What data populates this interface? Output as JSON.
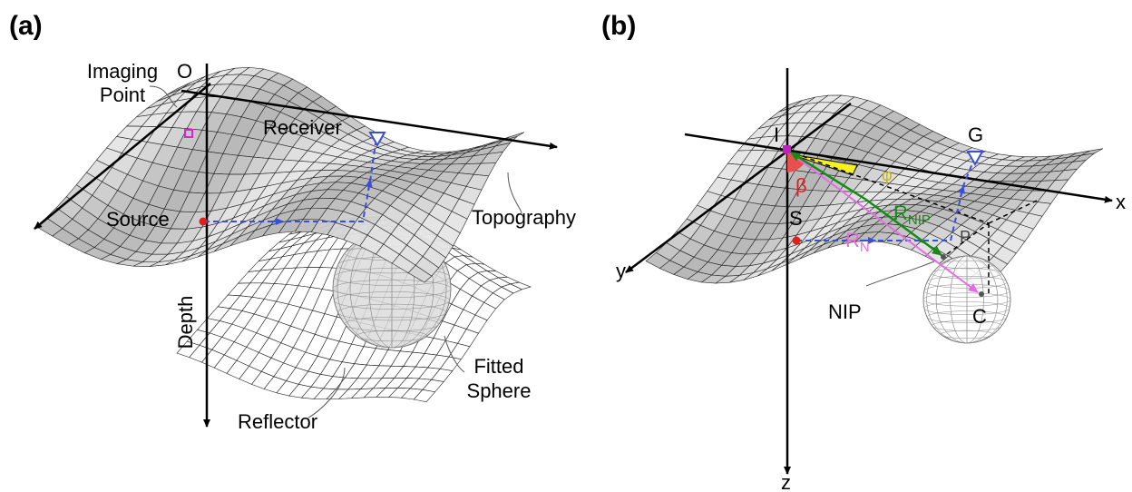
{
  "panels": [
    {
      "label": "(a)",
      "origin": "O",
      "imaging_point": [
        "Imaging",
        "Point"
      ],
      "receiver": "Receiver",
      "source": "Source",
      "topography": "Topography",
      "depth": "Depth",
      "fitted_sphere": [
        "Fitted",
        "Sphere"
      ],
      "reflector": "Reflector"
    },
    {
      "label": "(b)",
      "I": "I",
      "G": "G",
      "x": "x",
      "y": "y",
      "z": "z",
      "S": "S",
      "beta": "β",
      "phi": "φ",
      "R_N": {
        "main": "R",
        "sub": "N"
      },
      "R_NIP": {
        "main": "R",
        "sub": "NIP"
      },
      "P": "P",
      "NIP": "NIP",
      "C": "C"
    }
  ]
}
